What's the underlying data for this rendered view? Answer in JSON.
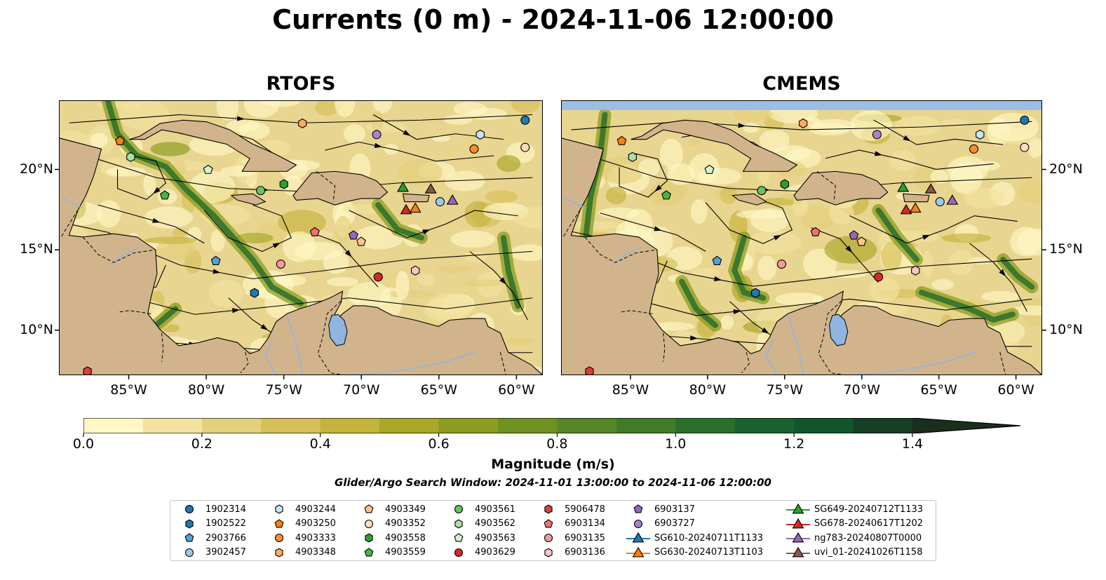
{
  "title": "Currents (0 m) - 2024-11-06 12:00:00",
  "panels": [
    {
      "title": "RTOFS"
    },
    {
      "title": "CMEMS"
    }
  ],
  "axes": {
    "lon_ticks": [
      "85°W",
      "80°W",
      "75°W",
      "70°W",
      "65°W",
      "60°W"
    ],
    "lon_values": [
      -85,
      -80,
      -75,
      -70,
      -65,
      -60
    ],
    "lat_ticks": [
      "20°N",
      "15°N",
      "10°N"
    ],
    "lat_values": [
      20,
      15,
      10
    ],
    "lon_range": [
      -89.5,
      -58.3
    ],
    "lat_range": [
      7.2,
      24.3
    ]
  },
  "colorbar": {
    "label": "Magnitude (m/s)",
    "ticks": [
      "0.0",
      "0.2",
      "0.4",
      "0.6",
      "0.8",
      "1.0",
      "1.2",
      "1.4"
    ],
    "tick_values": [
      0.0,
      0.2,
      0.4,
      0.6,
      0.8,
      1.0,
      1.2,
      1.4
    ],
    "range": [
      0.0,
      1.5
    ],
    "extend": "max",
    "colors": [
      "#fff8c4",
      "#f2e3a0",
      "#e4cf7a",
      "#d6c057",
      "#c6b33c",
      "#a9a628",
      "#8b9c1f",
      "#6f9120",
      "#568726",
      "#3f7c29",
      "#2a6f2c",
      "#18632f",
      "#12552c",
      "#143f25",
      "#1a2e1c"
    ]
  },
  "search_window": "Glider/Argo Search Window: 2024-11-01 13:00:00 to 2024-11-06 12:00:00",
  "legend": {
    "items": [
      {
        "label": "1902314",
        "marker": "circle",
        "color": "#1f77b4"
      },
      {
        "label": "1902522",
        "marker": "hexagon",
        "color": "#1f77b4"
      },
      {
        "label": "2903766",
        "marker": "pentagon",
        "color": "#5a9fd6"
      },
      {
        "label": "3902457",
        "marker": "circle",
        "color": "#9ecae9"
      },
      {
        "label": "4903244",
        "marker": "hexagon",
        "color": "#c6e6f7"
      },
      {
        "label": "4903250",
        "marker": "pentagon",
        "color": "#ff7f0e"
      },
      {
        "label": "4903333",
        "marker": "circle",
        "color": "#ff8c2a"
      },
      {
        "label": "4903348",
        "marker": "hexagon",
        "color": "#ffaa60"
      },
      {
        "label": "4903349",
        "marker": "pentagon",
        "color": "#ffc48a"
      },
      {
        "label": "4903352",
        "marker": "circle",
        "color": "#ffdcc0"
      },
      {
        "label": "4903558",
        "marker": "hexagon",
        "color": "#2ca02c"
      },
      {
        "label": "4903559",
        "marker": "pentagon",
        "color": "#46b446"
      },
      {
        "label": "4903561",
        "marker": "circle",
        "color": "#66c466"
      },
      {
        "label": "4903562",
        "marker": "hexagon",
        "color": "#a6e0a6"
      },
      {
        "label": "4903563",
        "marker": "pentagon",
        "color": "#d4f2d0"
      },
      {
        "label": "4903629",
        "marker": "circle",
        "color": "#d62728"
      },
      {
        "label": "5906478",
        "marker": "hexagon",
        "color": "#d84040"
      },
      {
        "label": "6903134",
        "marker": "pentagon",
        "color": "#f07070"
      },
      {
        "label": "6903135",
        "marker": "circle",
        "color": "#f59a9a"
      },
      {
        "label": "6903136",
        "marker": "hexagon",
        "color": "#ffc4c4"
      },
      {
        "label": "6903137",
        "marker": "pentagon",
        "color": "#9467bd"
      },
      {
        "label": "6903727",
        "marker": "circle",
        "color": "#a883cc"
      },
      {
        "label": "SG610-20240711T1133",
        "marker": "triangle-line",
        "color": "#1f77b4"
      },
      {
        "label": "SG630-20240713T1103",
        "marker": "triangle-line",
        "color": "#ff7f0e"
      },
      {
        "label": "SG649-20240712T1133",
        "marker": "triangle-line",
        "color": "#2ca02c"
      },
      {
        "label": "SG678-20240617T1202",
        "marker": "triangle-line",
        "color": "#d62728"
      },
      {
        "label": "ng783-20240807T0000",
        "marker": "triangle-line",
        "color": "#9467bd"
      },
      {
        "label": "uvi_01-20241026T1158",
        "marker": "triangle-line",
        "color": "#8c564b"
      }
    ]
  },
  "map_colors": {
    "land": "#d2b48c",
    "ocean_base": "#e8d590",
    "mask": "#9bbde6",
    "lake": "#8fb5e0",
    "streamline": "#000000"
  },
  "platforms": [
    {
      "id": "1902314",
      "lon": -59.4,
      "lat": 23.1
    },
    {
      "id": "4903244",
      "lon": -62.3,
      "lat": 22.2
    },
    {
      "id": "4903352",
      "lon": -59.4,
      "lat": 21.4
    },
    {
      "id": "4903333",
      "lon": -62.7,
      "lat": 21.3
    },
    {
      "id": "6903727",
      "lon": -69.0,
      "lat": 22.2
    },
    {
      "id": "4903348",
      "lon": -73.8,
      "lat": 22.9
    },
    {
      "id": "4903250",
      "lon": -85.6,
      "lat": 21.8
    },
    {
      "id": "4903562",
      "lon": -84.9,
      "lat": 20.8
    },
    {
      "id": "4903563",
      "lon": -79.9,
      "lat": 20.0
    },
    {
      "id": "4903559",
      "lon": -82.7,
      "lat": 18.4
    },
    {
      "id": "4903561",
      "lon": -76.5,
      "lat": 18.7
    },
    {
      "id": "4903558",
      "lon": -75.0,
      "lat": 19.1
    },
    {
      "id": "3902457",
      "lon": -64.9,
      "lat": 18.0
    },
    {
      "id": "6903134",
      "lon": -73.0,
      "lat": 16.1
    },
    {
      "id": "6903137",
      "lon": -70.5,
      "lat": 15.9
    },
    {
      "id": "4903349",
      "lon": -70.0,
      "lat": 15.5
    },
    {
      "id": "2903766",
      "lon": -79.4,
      "lat": 14.3
    },
    {
      "id": "6903135",
      "lon": -75.2,
      "lat": 14.1
    },
    {
      "id": "6903136",
      "lon": -66.5,
      "lat": 13.7
    },
    {
      "id": "4903629",
      "lon": -68.9,
      "lat": 13.3
    },
    {
      "id": "1902522",
      "lon": -76.9,
      "lat": 12.3
    },
    {
      "id": "5906478",
      "lon": -87.7,
      "lat": 7.4
    },
    {
      "id": "SG649-20240712T1133",
      "lon": -67.3,
      "lat": 18.9
    },
    {
      "id": "uvi_01-20241026T1158",
      "lon": -65.5,
      "lat": 18.8
    },
    {
      "id": "ng783-20240807T0000",
      "lon": -64.1,
      "lat": 18.1
    },
    {
      "id": "SG678-20240617T1202",
      "lon": -67.1,
      "lat": 17.5
    },
    {
      "id": "SG630-20240713T1103",
      "lon": -66.5,
      "lat": 17.6
    }
  ]
}
